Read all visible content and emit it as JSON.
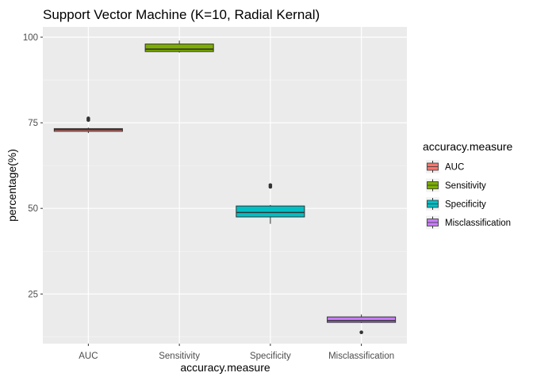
{
  "chart_data": {
    "type": "boxplot",
    "title": "Support Vector Machine (K=10, Radial Kernal)",
    "xlabel": "accuracy.measure",
    "ylabel": "percentage(%)",
    "ylim": [
      10.5,
      103
    ],
    "yticks": [
      25,
      50,
      75,
      100
    ],
    "grid": true,
    "legend": {
      "title": "accuracy.measure",
      "placement": "right"
    },
    "categories": [
      "AUC",
      "Sensitivity",
      "Specificity",
      "Misclassification"
    ],
    "colors": [
      "#F8766D",
      "#7CAE00",
      "#00BFC4",
      "#C77CFF"
    ],
    "boxes": [
      {
        "name": "AUC",
        "min": 72.0,
        "q1": 72.5,
        "median": 73.0,
        "q3": 73.3,
        "max": 73.6,
        "outliers": [
          75.8,
          76.3
        ]
      },
      {
        "name": "Sensitivity",
        "min": 95.5,
        "q1": 95.8,
        "median": 96.5,
        "q3": 98.0,
        "max": 99.0,
        "outliers": []
      },
      {
        "name": "Specificity",
        "min": 45.5,
        "q1": 47.5,
        "median": 48.8,
        "q3": 50.7,
        "max": 51.0,
        "outliers": [
          56.3,
          56.8
        ]
      },
      {
        "name": "Misclassification",
        "min": 16.5,
        "q1": 16.7,
        "median": 17.2,
        "q3": 18.3,
        "max": 19.0,
        "outliers": [
          13.8
        ]
      }
    ]
  }
}
